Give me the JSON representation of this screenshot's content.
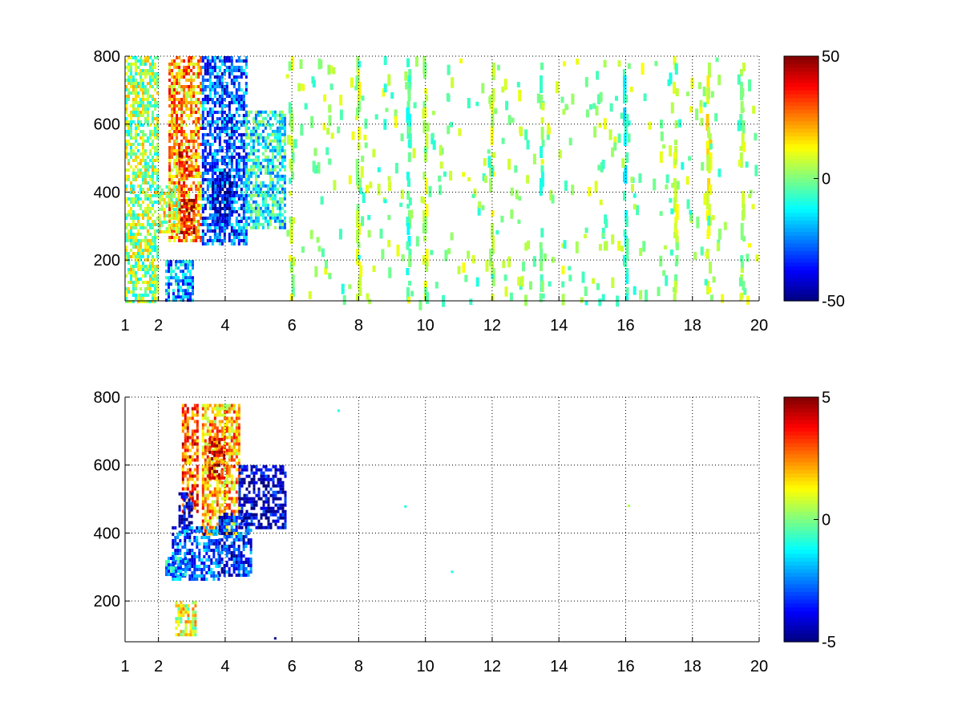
{
  "chart_data": [
    {
      "type": "heatmap",
      "title": "",
      "xlabel": "",
      "ylabel": "",
      "x_ticks": [
        1,
        2,
        4,
        6,
        8,
        10,
        12,
        14,
        16,
        18,
        20
      ],
      "y_ticks": [
        200,
        400,
        600,
        800
      ],
      "xlim": [
        1,
        20
      ],
      "ylim": [
        80,
        800
      ],
      "grid": true,
      "colormap": "jet",
      "colorbar": {
        "range": [
          -50,
          50
        ],
        "ticks": [
          50,
          0,
          -50
        ]
      },
      "regions": [
        {
          "x": [
            2.3,
            3.3
          ],
          "y": [
            260,
            800
          ],
          "level": 22
        },
        {
          "x": [
            2.6,
            3.1
          ],
          "y": [
            280,
            380
          ],
          "level": 40
        },
        {
          "x": [
            2.6,
            3.0
          ],
          "y": [
            440,
            520
          ],
          "level": 32
        },
        {
          "x": [
            3.3,
            4.6
          ],
          "y": [
            250,
            800
          ],
          "level": -28
        },
        {
          "x": [
            3.6,
            4.2
          ],
          "y": [
            300,
            460
          ],
          "level": -42
        },
        {
          "x": [
            4.6,
            5.8
          ],
          "y": [
            300,
            640
          ],
          "level": -12
        },
        {
          "x": [
            2.0,
            2.6
          ],
          "y": [
            280,
            420
          ],
          "level": 8
        },
        {
          "x": [
            2.2,
            3.0
          ],
          "y": [
            80,
            200
          ],
          "level": -22
        },
        {
          "x": [
            1.0,
            2.0
          ],
          "y": [
            80,
            800
          ],
          "level": 3
        }
      ],
      "bands": [
        {
          "x": 6.0,
          "level": 4
        },
        {
          "x": 8.0,
          "level": 6
        },
        {
          "x": 9.5,
          "level": -6
        },
        {
          "x": 10.0,
          "level": 5
        },
        {
          "x": 12.0,
          "level": 8
        },
        {
          "x": 13.5,
          "level": -5
        },
        {
          "x": 16.0,
          "level": -10
        },
        {
          "x": 17.5,
          "level": 5
        },
        {
          "x": 18.5,
          "level": 10
        },
        {
          "x": 19.5,
          "level": 3
        }
      ]
    },
    {
      "type": "heatmap",
      "title": "",
      "xlabel": "",
      "ylabel": "",
      "x_ticks": [
        1,
        2,
        4,
        6,
        8,
        10,
        12,
        14,
        16,
        18,
        20
      ],
      "y_ticks": [
        200,
        400,
        600,
        800
      ],
      "xlim": [
        1,
        20
      ],
      "ylim": [
        80,
        800
      ],
      "grid": true,
      "colormap": "jet",
      "colorbar": {
        "range": [
          -5,
          5
        ],
        "ticks": [
          5,
          0,
          -5
        ]
      },
      "regions": [
        {
          "x": [
            2.7,
            3.2
          ],
          "y": [
            460,
            780
          ],
          "level": 3
        },
        {
          "x": [
            2.6,
            3.0
          ],
          "y": [
            400,
            520
          ],
          "level": -4.5
        },
        {
          "x": [
            3.3,
            4.4
          ],
          "y": [
            400,
            780
          ],
          "level": 2
        },
        {
          "x": [
            3.5,
            4.0
          ],
          "y": [
            560,
            680
          ],
          "level": 3.5
        },
        {
          "x": [
            2.4,
            3.8
          ],
          "y": [
            260,
            420
          ],
          "level": -3
        },
        {
          "x": [
            3.8,
            4.8
          ],
          "y": [
            280,
            460
          ],
          "level": -3.5
        },
        {
          "x": [
            2.2,
            2.8
          ],
          "y": [
            280,
            330
          ],
          "level": -2
        },
        {
          "x": [
            4.4,
            5.8
          ],
          "y": [
            420,
            600
          ],
          "level": -4.5
        },
        {
          "x": [
            2.5,
            3.1
          ],
          "y": [
            100,
            200
          ],
          "level": 1
        }
      ],
      "points": [
        {
          "x": 7.4,
          "y": 760,
          "level": -1
        },
        {
          "x": 9.4,
          "y": 478,
          "level": -1
        },
        {
          "x": 10.8,
          "y": 286,
          "level": -1
        },
        {
          "x": 16.1,
          "y": 480,
          "level": 0.5
        },
        {
          "x": 5.5,
          "y": 90,
          "level": -5
        }
      ]
    }
  ],
  "colors": {
    "grid": "#000000",
    "axis": "#000000",
    "background": "#ffffff"
  }
}
